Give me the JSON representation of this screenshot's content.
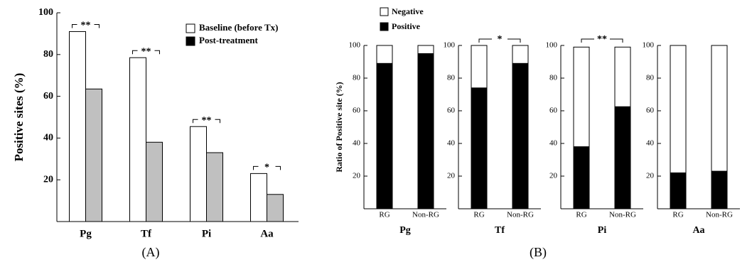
{
  "chart_data": [
    {
      "type": "bar",
      "y_label": "Positive sites (%)",
      "caption": "(A)",
      "categories": [
        "Pg",
        "Tf",
        "Pi",
        "Aa"
      ],
      "series": [
        {
          "name": "Baseline (before Tx)",
          "color": "#ffffff",
          "values": [
            91,
            78.5,
            45.5,
            23
          ]
        },
        {
          "name": "Post-treatment",
          "color": "#c0c0c0",
          "legend_color": "#000000",
          "values": [
            63.5,
            38,
            33,
            13
          ]
        }
      ],
      "annotations": [
        "**",
        "**",
        "**",
        "*"
      ],
      "ylim": [
        0,
        100
      ],
      "yticks": [
        20,
        40,
        60,
        80,
        100
      ]
    },
    {
      "type": "stacked_bar",
      "title": "Pg",
      "y_label": "Ratio of Positive site (%)",
      "caption": "(B)",
      "categories": [
        "RG",
        "Non-RG"
      ],
      "series": [
        {
          "name": "Positive",
          "color": "#000000",
          "values": [
            89,
            95
          ]
        },
        {
          "name": "Negative",
          "color": "#ffffff",
          "values": [
            11,
            5
          ]
        }
      ],
      "ylim": [
        0,
        100
      ],
      "yticks": [
        20,
        40,
        60,
        80,
        100
      ]
    },
    {
      "type": "stacked_bar",
      "title": "Tf",
      "annotation": "*",
      "categories": [
        "RG",
        "Non-RG"
      ],
      "series": [
        {
          "color": "#000000",
          "values": [
            74,
            89
          ]
        },
        {
          "color": "#ffffff",
          "values": [
            26,
            11
          ]
        }
      ],
      "ylim": [
        0,
        100
      ],
      "yticks": [
        20,
        40,
        60,
        80,
        100
      ]
    },
    {
      "type": "stacked_bar",
      "title": "Pi",
      "annotation": "**",
      "categories": [
        "RG",
        "Non-RG"
      ],
      "series": [
        {
          "color": "#000000",
          "values": [
            38,
            62.5
          ]
        },
        {
          "color": "#ffffff",
          "values": [
            61,
            36.5
          ]
        }
      ],
      "ylim": [
        0,
        100
      ],
      "yticks": [
        20,
        40,
        60,
        80,
        100
      ]
    },
    {
      "type": "stacked_bar",
      "title": "Aa",
      "categories": [
        "RG",
        "Non-RG"
      ],
      "series": [
        {
          "color": "#000000",
          "values": [
            22,
            23
          ]
        },
        {
          "color": "#ffffff",
          "values": [
            78,
            77
          ]
        }
      ],
      "ylim": [
        0,
        100
      ],
      "yticks": [
        20,
        40,
        60,
        80,
        100
      ]
    }
  ]
}
